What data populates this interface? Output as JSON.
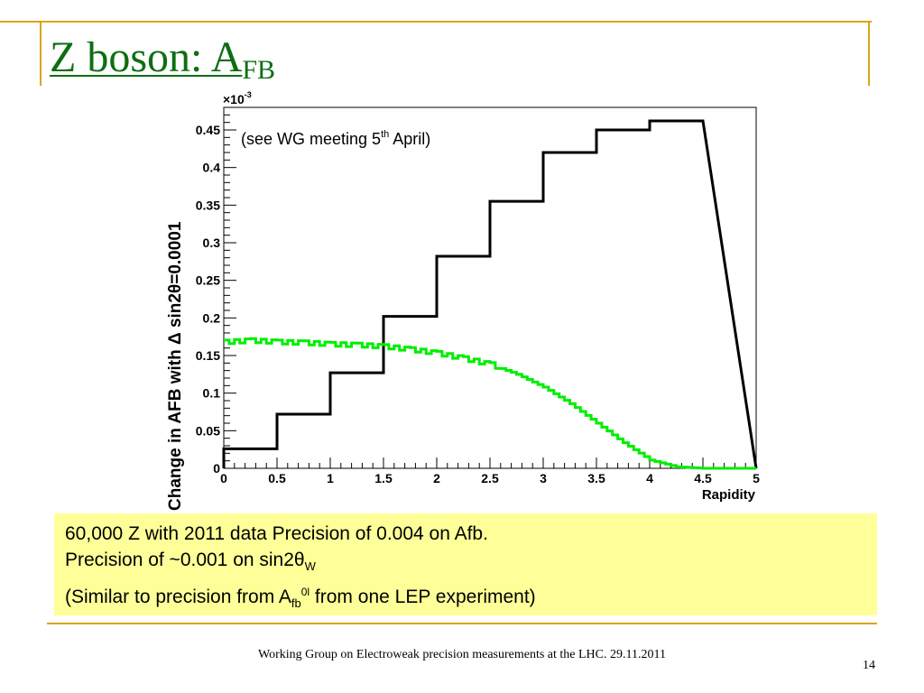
{
  "slide": {
    "title_main": "Z boson: A",
    "title_sub": "FB",
    "footer": "Working Group on Electroweak precision measurements at the LHC.  29.11.2011",
    "page_number": "14",
    "accent_color": "#d8a617",
    "title_color": "#0e6e12"
  },
  "note": {
    "background": "#ffff99",
    "line1": "60,000 Z with 2011 data  Precision of 0.004 on Afb.",
    "line2_text": "Precision of ~0.001 on sin2",
    "line2_greek": "θ",
    "line2_sub": "W",
    "line3_a": "(Similar to precision from A",
    "line3_sub": "fb",
    "line3_sup": "0l",
    "line3_b": " from one LEP experiment)"
  },
  "chart_data": {
    "type": "line",
    "style": "step-histogram",
    "xlabel": "Rapidity",
    "ylabel_main": "Change in AFB with ",
    "ylabel_delta": "Δ",
    "ylabel_tail": " sin2θ=0.0001",
    "y_multiplier_base": "×10",
    "y_multiplier_exp": "-3",
    "annotation_main": "(see WG meeting 5",
    "annotation_sup": "th",
    "annotation_tail": " April)",
    "xlim": [
      0,
      5
    ],
    "ylim": [
      0,
      0.00048
    ],
    "x_ticks": [
      0,
      0.5,
      1,
      1.5,
      2,
      2.5,
      3,
      3.5,
      4,
      4.5,
      5
    ],
    "x_tick_labels": [
      "0",
      "0.5",
      "1",
      "1.5",
      "2",
      "2.5",
      "3",
      "3.5",
      "4",
      "4.5",
      "5"
    ],
    "y_ticks": [
      0,
      5e-05,
      0.0001,
      0.00015,
      0.0002,
      0.00025,
      0.0003,
      0.00035,
      0.0004,
      0.00045
    ],
    "y_tick_labels": [
      "0",
      "0.05",
      "0.1",
      "0.15",
      "0.2",
      "0.25",
      "0.3",
      "0.35",
      "0.4",
      "0.45"
    ],
    "grid": false,
    "series": [
      {
        "color": "#000000",
        "bin_edges": [
          0,
          0.5,
          1,
          1.5,
          2,
          2.5,
          3,
          3.5,
          4,
          4.5
        ],
        "values": [
          2.6e-05,
          7.2e-05,
          0.000127,
          0.000202,
          0.000282,
          0.000355,
          0.00042,
          0.00045,
          0.000462
        ]
      },
      {
        "color": "#00ee00",
        "x": [
          0,
          0.25,
          0.5,
          0.75,
          1,
          1.25,
          1.5,
          1.75,
          2,
          2.25,
          2.5,
          2.75,
          3,
          3.25,
          3.5,
          3.75,
          4,
          4.25,
          4.5,
          4.75,
          5
        ],
        "values": [
          0.000168,
          0.00017,
          0.000168,
          0.000167,
          0.000165,
          0.000164,
          0.000162,
          0.000158,
          0.000153,
          0.000146,
          0.000138,
          0.000125,
          0.000108,
          8.6e-05,
          6e-05,
          3.4e-05,
          1.1e-05,
          2e-06,
          0.0,
          0.0,
          0.0
        ]
      }
    ]
  }
}
